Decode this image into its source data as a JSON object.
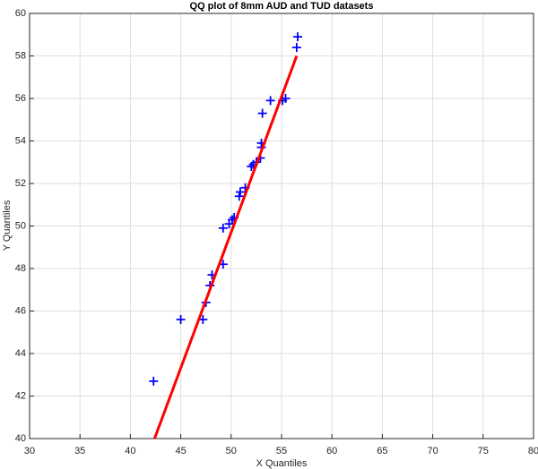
{
  "chart_data": {
    "type": "scatter",
    "title": "QQ plot of 8mm AUD and TUD datasets",
    "xlabel": "X Quantiles",
    "ylabel": "Y Quantiles",
    "xlim": [
      30,
      80
    ],
    "ylim": [
      40,
      60
    ],
    "xticks": [
      30,
      35,
      40,
      45,
      50,
      55,
      60,
      65,
      70,
      75,
      80
    ],
    "yticks": [
      40,
      42,
      44,
      46,
      48,
      50,
      52,
      54,
      56,
      58,
      60
    ],
    "grid": true,
    "series": [
      {
        "color": "#0000ff",
        "marker": "+",
        "x": [
          42.3,
          45.0,
          47.2,
          47.5,
          47.9,
          48.1,
          49.2,
          49.2,
          49.8,
          50.1,
          50.3,
          50.8,
          50.9,
          51.4,
          52.0,
          52.2,
          52.5,
          52.9,
          53.0,
          53.0,
          53.1,
          53.9,
          55.1,
          55.4,
          56.5,
          56.6
        ],
        "values": [
          42.7,
          45.6,
          45.6,
          46.4,
          47.2,
          47.7,
          48.2,
          49.9,
          50.1,
          50.3,
          50.4,
          51.4,
          51.6,
          51.8,
          52.8,
          52.9,
          53.0,
          53.2,
          53.7,
          53.9,
          55.3,
          55.9,
          55.9,
          56.0,
          58.4,
          58.9
        ]
      },
      {
        "color": "#ff0000",
        "marker": "line",
        "x": [
          42.4,
          56.5
        ],
        "values": [
          40,
          58
        ]
      }
    ]
  }
}
